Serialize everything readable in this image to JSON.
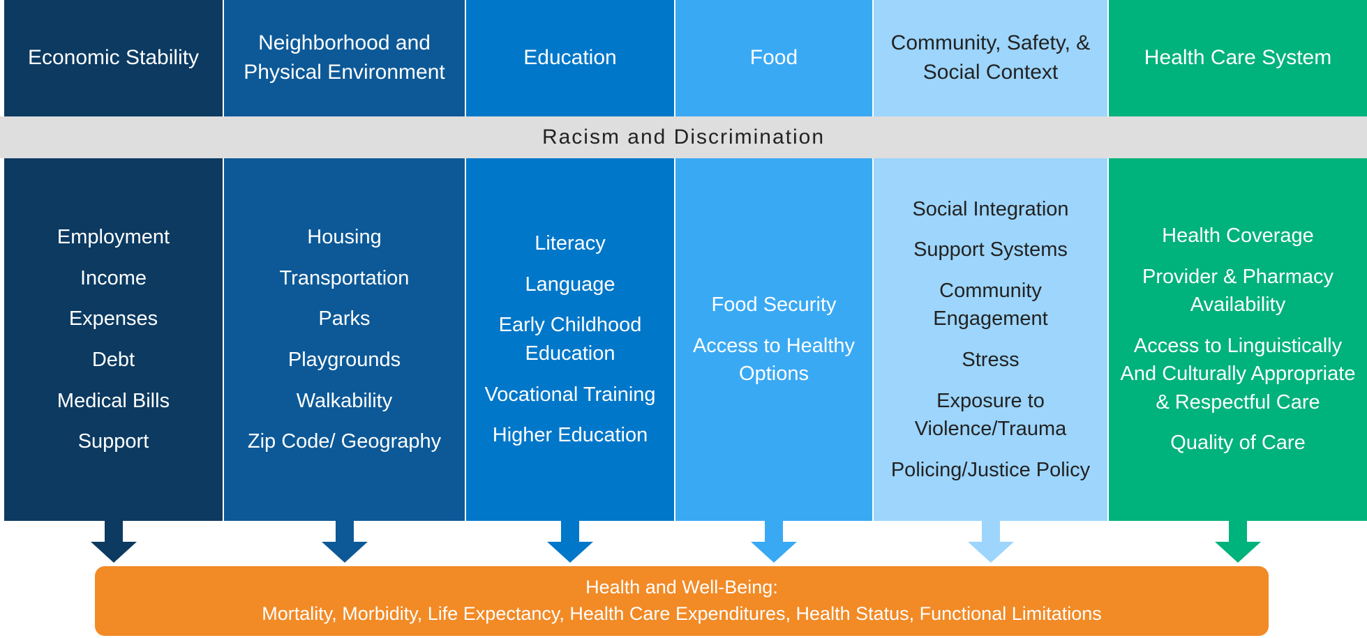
{
  "columns": [
    {
      "header": "Economic Stability",
      "items": [
        "Employment",
        "Income",
        "Expenses",
        "Debt",
        "Medical Bills",
        "Support"
      ]
    },
    {
      "header": "Neighborhood and Physical Environment",
      "items": [
        "Housing",
        "Transportation",
        "Parks",
        "Playgrounds",
        "Walkability",
        "Zip Code/ Geography"
      ]
    },
    {
      "header": "Education",
      "items": [
        "Literacy",
        "Language",
        "Early Childhood Education",
        "Vocational Training",
        "Higher Education"
      ]
    },
    {
      "header": "Food",
      "items": [
        "Food Security",
        "Access to Healthy Options"
      ]
    },
    {
      "header": "Community, Safety, & Social Context",
      "items": [
        "Social Integration",
        "Support Systems",
        "Community Engagement",
        "Stress",
        "Exposure to Violence/Trauma",
        "Policing/Justice Policy"
      ]
    },
    {
      "header": "Health Care System",
      "items": [
        "Health Coverage",
        "Provider & Pharmacy Availability",
        "Access to Linguistically And Culturally Appropriate & Respectful Care",
        "Quality of Care"
      ]
    }
  ],
  "band": "Racism and Discrimination",
  "outcome": {
    "title": "Health and Well-Being:",
    "text": "Mortality, Morbidity, Life Expectancy, Health Care Expenditures, Health Status, Functional Limitations"
  }
}
